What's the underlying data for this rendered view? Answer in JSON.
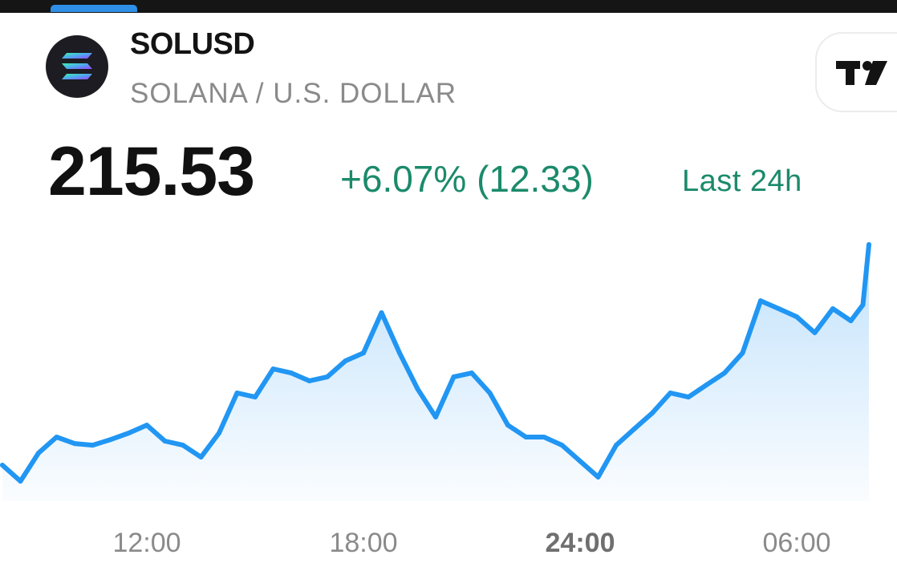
{
  "header": {
    "symbol": "SOLUSD",
    "description": "SOLANA / U.S. DOLLAR",
    "logo_icon": "solana-logo-icon",
    "brand_button_icon": "tradingview-logo-icon"
  },
  "quote": {
    "price": "215.53",
    "change": "+6.07% (12.33)",
    "period": "Last 24h",
    "change_color": "#1b8a6b"
  },
  "chart_data": {
    "type": "area",
    "line_color": "#2196f3",
    "grid": false,
    "x_ticks": [
      "12:00",
      "18:00",
      "24:00",
      "06:00"
    ],
    "bold_tick": "24:00",
    "x": [
      "08:00",
      "08:30",
      "09:00",
      "09:30",
      "10:00",
      "10:30",
      "11:00",
      "11:30",
      "12:00",
      "12:30",
      "13:00",
      "13:30",
      "14:00",
      "14:30",
      "15:00",
      "15:30",
      "16:00",
      "16:30",
      "17:00",
      "17:30",
      "18:00",
      "18:30",
      "19:00",
      "19:30",
      "20:00",
      "20:30",
      "21:00",
      "21:30",
      "22:00",
      "22:30",
      "23:00",
      "23:30",
      "24:00",
      "00:30",
      "01:00",
      "01:30",
      "02:00",
      "02:30",
      "03:00",
      "03:30",
      "04:00",
      "04:30",
      "05:00",
      "05:30",
      "06:00",
      "06:30",
      "07:00",
      "07:30",
      "07:50",
      "08:00"
    ],
    "values": [
      202.97,
      202.06,
      203.66,
      204.57,
      204.2,
      204.11,
      204.43,
      204.8,
      205.25,
      204.34,
      204.11,
      203.43,
      204.8,
      207.08,
      206.85,
      208.45,
      208.22,
      207.77,
      208.0,
      208.91,
      209.36,
      211.65,
      209.36,
      207.31,
      205.71,
      208.0,
      208.22,
      207.08,
      205.25,
      204.57,
      204.57,
      204.11,
      203.2,
      202.29,
      204.11,
      205.03,
      205.94,
      207.08,
      206.85,
      207.54,
      208.22,
      209.36,
      212.33,
      211.88,
      211.42,
      210.51,
      211.88,
      211.19,
      212.1,
      215.53
    ]
  }
}
